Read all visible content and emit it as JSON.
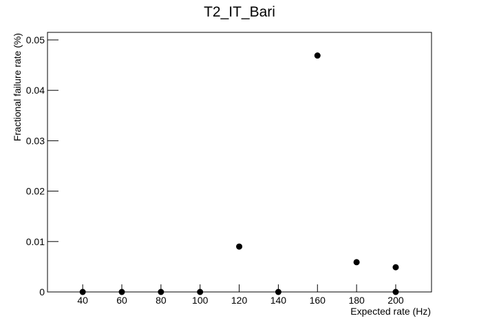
{
  "chart_data": {
    "type": "scatter",
    "title": "T2_IT_Bari",
    "xlabel": "Expected rate (Hz)",
    "ylabel": "Fractional failure rate (%)",
    "x": [
      40,
      60,
      80,
      100,
      120,
      140,
      160,
      180,
      200,
      200
    ],
    "series": [
      {
        "name": "T2_IT_Bari",
        "color": "#000000",
        "values": [
          0,
          0,
          0,
          0,
          0.009,
          0,
          0.0469,
          0.0059,
          0,
          0.0049
        ]
      }
    ],
    "xlim": [
      22,
      218.3
    ],
    "ylim": [
      0,
      0.0515
    ],
    "xticks": [
      40,
      60,
      80,
      100,
      120,
      140,
      160,
      180,
      200
    ],
    "yticks": [
      0,
      0.01,
      0.02,
      0.03,
      0.04,
      0.05
    ],
    "grid": false
  }
}
